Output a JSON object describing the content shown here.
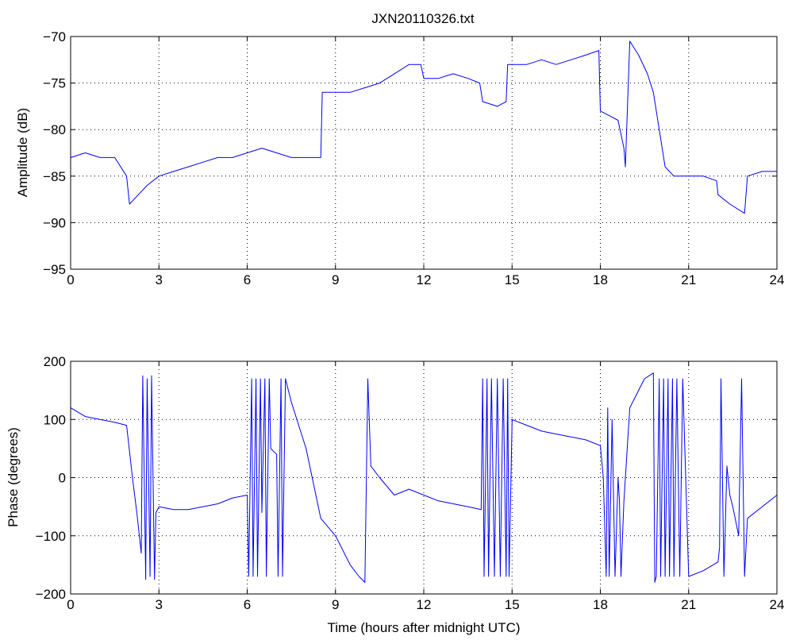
{
  "chart_data": [
    {
      "type": "line",
      "title": "JXN20110326.txt",
      "xlabel": "",
      "ylabel": "Amplitude (dB)",
      "xlim": [
        0,
        24
      ],
      "ylim": [
        -95,
        -70
      ],
      "xticks": [
        0,
        3,
        6,
        9,
        12,
        15,
        18,
        21,
        24
      ],
      "yticks": [
        -95,
        -90,
        -85,
        -80,
        -75,
        -70
      ],
      "xtick_labels": [
        "0",
        "3",
        "6",
        "9",
        "12",
        "15",
        "18",
        "21",
        "24"
      ],
      "ytick_labels": [
        "−95",
        "−90",
        "−85",
        "−80",
        "−75",
        "−70"
      ],
      "grid": true,
      "color": "#0000ff",
      "series": [
        {
          "x": [
            0,
            0.5,
            1.0,
            1.5,
            1.9,
            2.0,
            2.3,
            2.6,
            3.0,
            3.5,
            4.0,
            4.5,
            5.0,
            5.5,
            6.0,
            6.5,
            7.0,
            7.5,
            8.0,
            8.5,
            8.55,
            9.0,
            9.5,
            10.0,
            10.5,
            11.0,
            11.5,
            11.9,
            12.0,
            12.5,
            13.0,
            13.5,
            13.9,
            14.0,
            14.5,
            14.8,
            14.85,
            15.5,
            16.0,
            16.5,
            17.0,
            17.5,
            17.95,
            18.0,
            18.3,
            18.6,
            18.8,
            18.85,
            19.0,
            19.3,
            19.6,
            19.8,
            20.0,
            20.2,
            20.5,
            21.0,
            21.5,
            21.95,
            22.0,
            22.4,
            22.9,
            23.0,
            23.5,
            24.0
          ],
          "y": [
            -83,
            -82.5,
            -83,
            -83,
            -85,
            -88,
            -87,
            -86,
            -85,
            -84.5,
            -84,
            -83.5,
            -83,
            -83,
            -82.5,
            -82,
            -82.5,
            -83,
            -83,
            -83,
            -76,
            -76,
            -76,
            -75.5,
            -75,
            -74,
            -73,
            -73,
            -74.5,
            -74.5,
            -74,
            -74.5,
            -75,
            -77,
            -77.5,
            -77,
            -73,
            -73,
            -72.5,
            -73,
            -72.5,
            -72,
            -71.5,
            -78,
            -78.5,
            -79,
            -82,
            -84,
            -70.5,
            -72,
            -74,
            -76,
            -80,
            -84,
            -85,
            -85,
            -85,
            -85.5,
            -87,
            -88,
            -89,
            -85,
            -84.5,
            -84.5
          ]
        }
      ]
    },
    {
      "type": "line",
      "title": "",
      "xlabel": "Time (hours after midnight UTC)",
      "ylabel": "Phase (degrees)",
      "xlim": [
        0,
        24
      ],
      "ylim": [
        -200,
        200
      ],
      "xticks": [
        0,
        3,
        6,
        9,
        12,
        15,
        18,
        21,
        24
      ],
      "yticks": [
        -200,
        -100,
        0,
        100,
        200
      ],
      "xtick_labels": [
        "0",
        "3",
        "6",
        "9",
        "12",
        "15",
        "18",
        "21",
        "24"
      ],
      "ytick_labels": [
        "−200",
        "−100",
        "0",
        "100",
        "200"
      ],
      "grid": true,
      "color": "#0000ff",
      "series": [
        {
          "x": [
            0,
            0.5,
            1.0,
            1.5,
            1.9,
            2.1,
            2.25,
            2.4,
            2.45,
            2.55,
            2.6,
            2.7,
            2.75,
            2.85,
            2.9,
            3.0,
            3.5,
            4.0,
            4.5,
            5.0,
            5.5,
            6.0,
            6.05,
            6.15,
            6.2,
            6.3,
            6.35,
            6.45,
            6.5,
            6.6,
            6.65,
            6.75,
            6.8,
            7.0,
            7.05,
            7.15,
            7.2,
            7.3,
            7.4,
            7.5,
            8.0,
            8.5,
            9.0,
            9.5,
            9.8,
            10.0,
            10.1,
            10.2,
            10.5,
            11.0,
            11.5,
            12.0,
            12.5,
            13.0,
            13.5,
            13.95,
            14.0,
            14.05,
            14.15,
            14.2,
            14.3,
            14.4,
            14.5,
            14.6,
            14.7,
            14.8,
            14.85,
            14.9,
            15.0,
            15.5,
            16.0,
            16.5,
            17.0,
            17.5,
            18.0,
            18.1,
            18.2,
            18.25,
            18.3,
            18.4,
            18.5,
            18.6,
            18.65,
            18.7,
            18.8,
            18.9,
            19.0,
            19.5,
            19.8,
            19.85,
            19.9,
            20.0,
            20.05,
            20.15,
            20.2,
            20.3,
            20.35,
            20.45,
            20.5,
            20.6,
            20.7,
            20.8,
            21.0,
            21.5,
            22.0,
            22.05,
            22.1,
            22.2,
            22.3,
            22.4,
            22.5,
            22.7,
            22.8,
            22.9,
            23.0,
            23.5,
            24.0
          ],
          "y": [
            120,
            105,
            100,
            95,
            90,
            0,
            -60,
            -130,
            175,
            -175,
            170,
            -170,
            175,
            -175,
            -60,
            -50,
            -55,
            -55,
            -50,
            -45,
            -35,
            -30,
            -170,
            170,
            -170,
            170,
            -170,
            170,
            -60,
            170,
            -170,
            170,
            50,
            40,
            -170,
            170,
            -170,
            170,
            150,
            130,
            50,
            -70,
            -100,
            -150,
            -170,
            -180,
            170,
            20,
            0,
            -30,
            -20,
            -30,
            -40,
            -45,
            -50,
            -55,
            170,
            -170,
            170,
            -170,
            170,
            -170,
            170,
            -170,
            170,
            -170,
            170,
            -170,
            100,
            90,
            80,
            75,
            70,
            65,
            55,
            0,
            -170,
            120,
            -170,
            100,
            -170,
            0,
            -40,
            -170,
            -40,
            40,
            120,
            170,
            180,
            -180,
            -170,
            170,
            -170,
            170,
            -170,
            170,
            -170,
            170,
            -170,
            170,
            -170,
            170,
            -170,
            -160,
            -145,
            -120,
            170,
            -170,
            20,
            -30,
            -50,
            -100,
            170,
            -170,
            -70,
            -50,
            -30
          ]
        }
      ]
    }
  ]
}
